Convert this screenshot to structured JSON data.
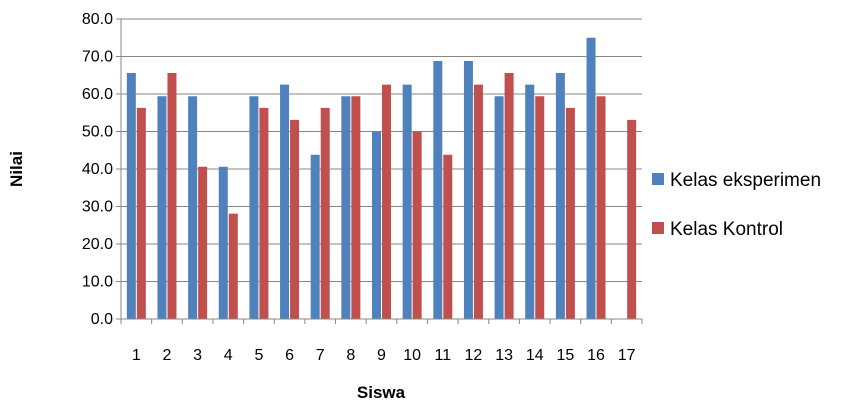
{
  "chart_data": {
    "type": "bar",
    "title": "",
    "xlabel": "Siswa",
    "ylabel": "Nilai",
    "ylim": [
      0,
      80
    ],
    "ytick_step": 10,
    "ytick_format_decimals": 1,
    "grid": true,
    "legend_position": "right",
    "categories": [
      "1",
      "2",
      "3",
      "4",
      "5",
      "6",
      "7",
      "8",
      "9",
      "10",
      "11",
      "12",
      "13",
      "14",
      "15",
      "16",
      "17"
    ],
    "series": [
      {
        "name": "Kelas eksperimen",
        "color": "#4F81BD",
        "values": [
          65.6,
          59.4,
          59.4,
          40.6,
          59.4,
          62.5,
          43.8,
          59.4,
          50.0,
          62.5,
          68.8,
          68.8,
          59.4,
          62.5,
          65.6,
          75.0,
          null
        ]
      },
      {
        "name": "Kelas Kontrol",
        "color": "#C0504D",
        "values": [
          56.3,
          65.6,
          40.6,
          28.1,
          56.3,
          53.1,
          56.3,
          59.4,
          62.5,
          50.0,
          43.8,
          62.5,
          65.6,
          59.4,
          56.3,
          59.4,
          53.1
        ]
      }
    ]
  }
}
